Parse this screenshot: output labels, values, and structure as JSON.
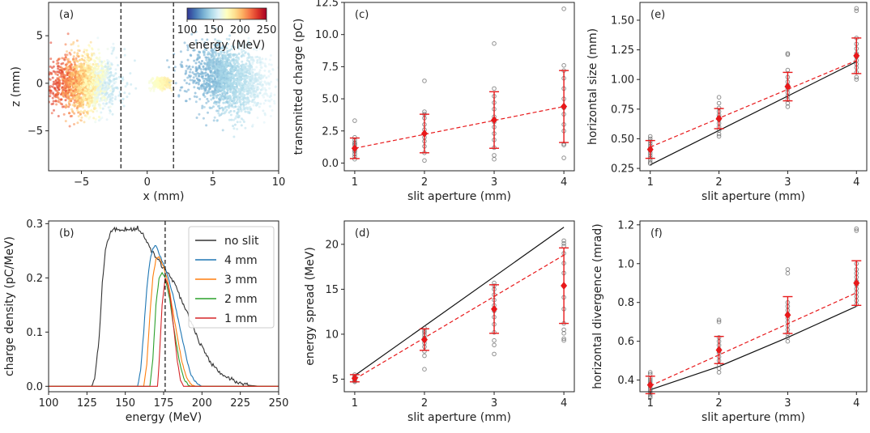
{
  "chart_data": [
    {
      "id": "a",
      "panel_label": "(a)",
      "type": "scatter",
      "xlabel": "x (mm)",
      "ylabel": "z (mm)",
      "xlim": [
        -7.5,
        10
      ],
      "ylim": [
        -9.2,
        8.5
      ],
      "xticks": [
        -5,
        0,
        5,
        10
      ],
      "xtick_labels": [
        "−5",
        "0",
        "5",
        "10"
      ],
      "yticks": [
        -5,
        0,
        5
      ],
      "ytick_labels": [
        "−5",
        "0",
        "5"
      ],
      "vlines_dashed": [
        -2,
        2
      ],
      "colorbar": {
        "label": "energy (MeV)",
        "ticks": [
          100,
          150,
          200,
          250
        ],
        "range": [
          100,
          250
        ],
        "colormap": [
          "#313695",
          "#4575b4",
          "#74add1",
          "#abd9e9",
          "#e0f3f8",
          "#ffffbf",
          "#fee090",
          "#fdae61",
          "#f46d43",
          "#d73027",
          "#a50026"
        ]
      },
      "clusters": [
        {
          "center_x": -4.8,
          "center_z": 0,
          "sigma_x": 2.0,
          "sigma_z": 2.4,
          "energy_min": 150,
          "energy_max": 230,
          "count": 1600
        },
        {
          "center_x": 6.3,
          "center_z": 0.4,
          "sigma_x": 2.4,
          "sigma_z": 2.8,
          "energy_min": 120,
          "energy_max": 170,
          "count": 1600
        },
        {
          "center_x": 1.0,
          "center_z": 0,
          "sigma_x": 0.6,
          "sigma_z": 0.5,
          "energy_min": 165,
          "energy_max": 190,
          "count": 220
        }
      ]
    },
    {
      "id": "b",
      "panel_label": "(b)",
      "type": "line",
      "xlabel": "energy (MeV)",
      "ylabel": "charge density (pC/MeV)",
      "xlim": [
        100,
        250
      ],
      "ylim": [
        -0.01,
        0.305
      ],
      "xticks": [
        100,
        125,
        150,
        175,
        200,
        225,
        250
      ],
      "yticks": [
        0.0,
        0.1,
        0.2,
        0.3
      ],
      "ytick_labels": [
        "0.0",
        "0.1",
        "0.2",
        "0.3"
      ],
      "vline_dashed": 176,
      "legend_position": "top-right",
      "series": [
        {
          "name": "no slit",
          "color": "#333333",
          "points": [
            [
              100,
              0
            ],
            [
              128,
              0
            ],
            [
              130,
              0.01
            ],
            [
              133,
              0.09
            ],
            [
              135,
              0.19
            ],
            [
              137,
              0.25
            ],
            [
              140,
              0.282
            ],
            [
              143,
              0.289
            ],
            [
              150,
              0.29
            ],
            [
              155,
              0.289
            ],
            [
              158,
              0.293
            ],
            [
              161,
              0.282
            ],
            [
              164,
              0.268
            ],
            [
              167,
              0.251
            ],
            [
              170,
              0.238
            ],
            [
              173,
              0.226
            ],
            [
              176,
              0.215
            ],
            [
              179,
              0.205
            ],
            [
              182,
              0.19
            ],
            [
              185,
              0.17
            ],
            [
              188,
              0.15
            ],
            [
              191,
              0.13
            ],
            [
              194,
              0.11
            ],
            [
              197,
              0.09
            ],
            [
              200,
              0.072
            ],
            [
              203,
              0.055
            ],
            [
              206,
              0.042
            ],
            [
              209,
              0.032
            ],
            [
              212,
              0.025
            ],
            [
              215,
              0.018
            ],
            [
              220,
              0.012
            ],
            [
              225,
              0.006
            ],
            [
              230,
              0.002
            ],
            [
              238,
              0
            ],
            [
              250,
              0
            ]
          ]
        },
        {
          "name": "4 mm",
          "color": "#1f77b4",
          "points": [
            [
              100,
              0
            ],
            [
              158,
              0
            ],
            [
              160,
              0.03
            ],
            [
              162,
              0.1
            ],
            [
              164,
              0.18
            ],
            [
              166,
              0.23
            ],
            [
              168,
              0.255
            ],
            [
              170,
              0.26
            ],
            [
              172,
              0.245
            ],
            [
              175,
              0.225
            ],
            [
              178,
              0.2
            ],
            [
              181,
              0.17
            ],
            [
              184,
              0.13
            ],
            [
              187,
              0.09
            ],
            [
              190,
              0.05
            ],
            [
              193,
              0.02
            ],
            [
              197,
              0.004
            ],
            [
              200,
              0
            ],
            [
              250,
              0
            ]
          ]
        },
        {
          "name": "3 mm",
          "color": "#ff7f0e",
          "points": [
            [
              100,
              0
            ],
            [
              162,
              0
            ],
            [
              164,
              0.04
            ],
            [
              166,
              0.13
            ],
            [
              168,
              0.2
            ],
            [
              170,
              0.235
            ],
            [
              172,
              0.24
            ],
            [
              175,
              0.22
            ],
            [
              178,
              0.19
            ],
            [
              181,
              0.14
            ],
            [
              184,
              0.09
            ],
            [
              187,
              0.045
            ],
            [
              190,
              0.015
            ],
            [
              193,
              0.003
            ],
            [
              196,
              0
            ],
            [
              250,
              0
            ]
          ]
        },
        {
          "name": "2 mm",
          "color": "#2ca02c",
          "points": [
            [
              100,
              0
            ],
            [
              166,
              0
            ],
            [
              168,
              0.05
            ],
            [
              170,
              0.15
            ],
            [
              172,
              0.2
            ],
            [
              174,
              0.21
            ],
            [
              176,
              0.2
            ],
            [
              179,
              0.16
            ],
            [
              182,
              0.1
            ],
            [
              185,
              0.05
            ],
            [
              188,
              0.015
            ],
            [
              191,
              0.002
            ],
            [
              193,
              0
            ],
            [
              250,
              0
            ]
          ]
        },
        {
          "name": "1 mm",
          "color": "#d62728",
          "points": [
            [
              100,
              0
            ],
            [
              171,
              0
            ],
            [
              172,
              0.04
            ],
            [
              174,
              0.15
            ],
            [
              176,
              0.2
            ],
            [
              178,
              0.185
            ],
            [
              180,
              0.15
            ],
            [
              182,
              0.095
            ],
            [
              184,
              0.045
            ],
            [
              186,
              0.012
            ],
            [
              188,
              0
            ],
            [
              250,
              0
            ]
          ]
        }
      ]
    },
    {
      "id": "c",
      "panel_label": "(c)",
      "type": "scatter",
      "xlabel": "slit aperture (mm)",
      "ylabel": "transmitted charge (pC)",
      "xlim": [
        0.85,
        4.15
      ],
      "ylim": [
        -0.6,
        12.5
      ],
      "xticks": [
        1,
        2,
        3,
        4
      ],
      "yticks": [
        0.0,
        2.5,
        5.0,
        7.5,
        10.0,
        12.5
      ],
      "ytick_labels": [
        "0.0",
        "2.5",
        "5.0",
        "7.5",
        "10.0",
        "12.5"
      ],
      "shots": [
        {
          "x": 1,
          "values": [
            3.3,
            2.0,
            1.8,
            1.6,
            1.5,
            1.4,
            1.2,
            1.0,
            0.9,
            0.7,
            0.5,
            0.3
          ]
        },
        {
          "x": 2,
          "values": [
            6.4,
            4.0,
            3.8,
            3.5,
            3.0,
            2.6,
            2.3,
            2.0,
            1.7,
            1.3,
            0.8,
            0.2
          ]
        },
        {
          "x": 3,
          "values": [
            9.3,
            5.8,
            5.2,
            4.7,
            4.2,
            3.6,
            3.2,
            2.8,
            2.3,
            1.8,
            1.2,
            0.6,
            0.3
          ]
        },
        {
          "x": 4,
          "values": [
            12.0,
            7.6,
            7.2,
            6.6,
            5.8,
            5.0,
            4.3,
            3.8,
            3.0,
            2.5,
            1.5,
            1.4,
            0.4
          ]
        }
      ],
      "mean": {
        "x": [
          1,
          2,
          3,
          4
        ],
        "y": [
          1.15,
          2.3,
          3.35,
          4.4
        ],
        "err": [
          0.8,
          1.5,
          2.2,
          2.8
        ]
      },
      "fit_dashed": {
        "x": [
          1,
          4
        ],
        "y": [
          1.15,
          4.4
        ]
      }
    },
    {
      "id": "d",
      "panel_label": "(d)",
      "type": "scatter",
      "xlabel": "slit aperture (mm)",
      "ylabel": "energy spread (MeV)",
      "xlim": [
        0.85,
        4.15
      ],
      "ylim": [
        3.6,
        22.6
      ],
      "xticks": [
        1,
        2,
        3,
        4
      ],
      "yticks": [
        5,
        10,
        15,
        20
      ],
      "shots": [
        {
          "x": 1,
          "values": [
            5.5,
            5.3,
            5.2,
            5.1,
            5.0,
            4.9,
            4.8,
            4.7
          ]
        },
        {
          "x": 2,
          "values": [
            10.7,
            10.4,
            10.2,
            9.9,
            9.6,
            9.3,
            9.0,
            8.6,
            8.1,
            7.6,
            6.1
          ]
        },
        {
          "x": 3,
          "values": [
            15.7,
            15.4,
            15.0,
            14.4,
            13.8,
            13.2,
            12.6,
            11.9,
            11.1,
            10.2,
            9.3,
            8.8,
            7.8
          ]
        },
        {
          "x": 4,
          "values": [
            20.4,
            20.1,
            19.8,
            19.0,
            17.9,
            16.8,
            15.4,
            14.1,
            12.8,
            11.2,
            10.5,
            10.1,
            9.5,
            9.3
          ]
        }
      ],
      "mean": {
        "x": [
          1,
          2,
          3,
          4
        ],
        "y": [
          5.1,
          9.4,
          12.8,
          15.4
        ],
        "err": [
          0.4,
          1.2,
          2.7,
          4.2
        ]
      },
      "fit_dashed": {
        "x": [
          1,
          4
        ],
        "y": [
          5.0,
          18.8
        ]
      },
      "model_solid": {
        "x": [
          1,
          4
        ],
        "y": [
          5.4,
          21.9
        ]
      }
    },
    {
      "id": "e",
      "panel_label": "(e)",
      "type": "scatter",
      "xlabel": "slit aperture (mm)",
      "ylabel": "horizontal size (mm)",
      "xlim": [
        0.85,
        4.15
      ],
      "ylim": [
        0.23,
        1.65
      ],
      "xticks": [
        1,
        2,
        3,
        4
      ],
      "yticks": [
        0.25,
        0.5,
        0.75,
        1.0,
        1.25,
        1.5
      ],
      "ytick_labels": [
        "0.25",
        "0.50",
        "0.75",
        "1.00",
        "1.25",
        "1.50"
      ],
      "shots": [
        {
          "x": 1,
          "values": [
            0.52,
            0.5,
            0.48,
            0.46,
            0.44,
            0.42,
            0.4,
            0.38,
            0.36,
            0.34,
            0.32,
            0.3,
            0.29
          ]
        },
        {
          "x": 2,
          "values": [
            0.85,
            0.8,
            0.76,
            0.73,
            0.7,
            0.68,
            0.66,
            0.63,
            0.6,
            0.57,
            0.54,
            0.52
          ]
        },
        {
          "x": 3,
          "values": [
            1.22,
            1.21,
            1.08,
            1.02,
            0.98,
            0.95,
            0.92,
            0.89,
            0.86,
            0.83,
            0.8,
            0.77
          ]
        },
        {
          "x": 4,
          "values": [
            1.6,
            1.58,
            1.35,
            1.3,
            1.26,
            1.22,
            1.19,
            1.16,
            1.13,
            1.1,
            1.06,
            1.02,
            1.0
          ]
        }
      ],
      "mean": {
        "x": [
          1,
          2,
          3,
          4
        ],
        "y": [
          0.41,
          0.67,
          0.94,
          1.2
        ],
        "err": [
          0.075,
          0.085,
          0.12,
          0.15
        ]
      },
      "fit_dashed": {
        "x": [
          1,
          4
        ],
        "y": [
          0.43,
          1.16
        ]
      },
      "model_solid": {
        "x": [
          1,
          4
        ],
        "y": [
          0.28,
          1.15
        ]
      }
    },
    {
      "id": "f",
      "panel_label": "(f)",
      "type": "scatter",
      "xlabel": "slit aperture (mm)",
      "ylabel": "horizontal divergence (mrad)",
      "xlim": [
        0.85,
        4.15
      ],
      "ylim": [
        0.34,
        1.22
      ],
      "xticks": [
        1,
        2,
        3,
        4
      ],
      "yticks": [
        0.4,
        0.6,
        0.8,
        1.0,
        1.2
      ],
      "ytick_labels": [
        "0.4",
        "0.6",
        "0.8",
        "1.0",
        "1.2"
      ],
      "shots": [
        {
          "x": 1,
          "values": [
            0.44,
            0.43,
            0.41,
            0.4,
            0.39,
            0.38,
            0.37,
            0.36,
            0.35,
            0.34,
            0.33,
            0.32,
            0.31
          ]
        },
        {
          "x": 2,
          "values": [
            0.71,
            0.7,
            0.62,
            0.6,
            0.58,
            0.56,
            0.55,
            0.54,
            0.52,
            0.5,
            0.48,
            0.46,
            0.44
          ]
        },
        {
          "x": 3,
          "values": [
            0.97,
            0.95,
            0.8,
            0.78,
            0.76,
            0.74,
            0.72,
            0.7,
            0.68,
            0.66,
            0.64,
            0.62,
            0.6
          ]
        },
        {
          "x": 4,
          "values": [
            1.18,
            1.17,
            1.0,
            0.97,
            0.95,
            0.93,
            0.91,
            0.89,
            0.87,
            0.85,
            0.83,
            0.81,
            0.79
          ]
        }
      ],
      "mean": {
        "x": [
          1,
          2,
          3,
          4
        ],
        "y": [
          0.375,
          0.555,
          0.735,
          0.9
        ],
        "err": [
          0.045,
          0.07,
          0.095,
          0.115
        ]
      },
      "fit_dashed": {
        "x": [
          1,
          4
        ],
        "y": [
          0.37,
          0.85
        ]
      },
      "model_solid": {
        "x": [
          1,
          2,
          3,
          4
        ],
        "y": [
          0.35,
          0.47,
          0.62,
          0.78
        ]
      }
    }
  ]
}
